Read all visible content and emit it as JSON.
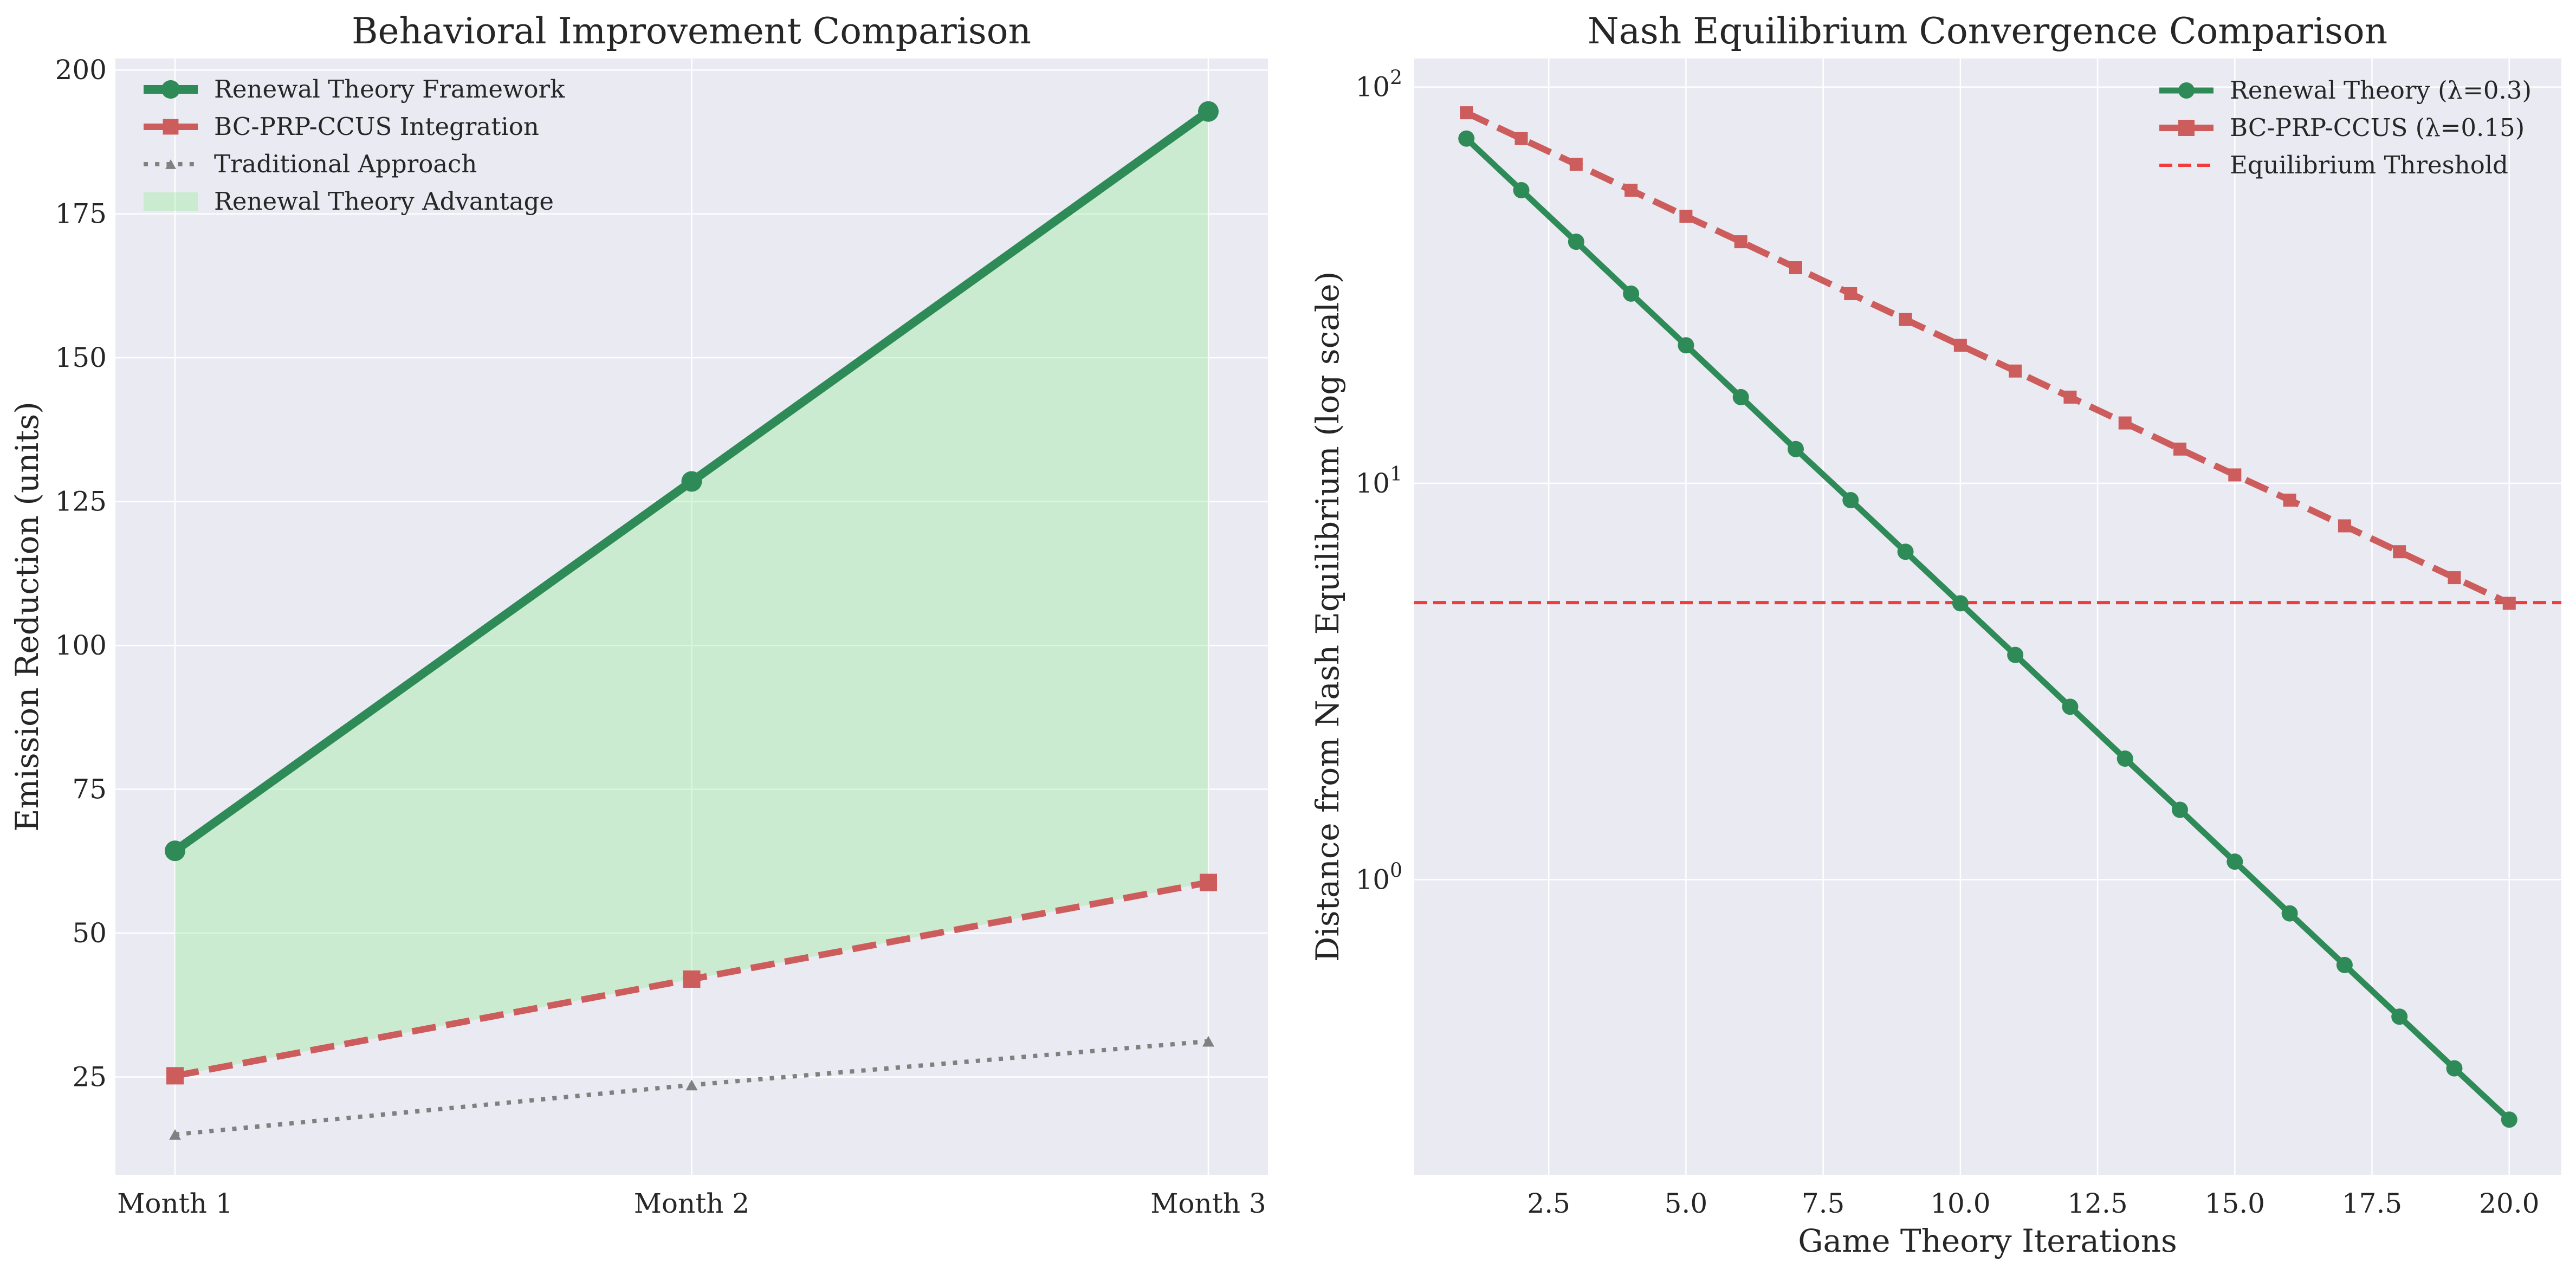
{
  "chart_data": [
    {
      "type": "line",
      "title": "Behavioral Improvement Comparison",
      "xlabel": "",
      "ylabel": "Emission Reduction (units)",
      "categories": [
        "Month 1",
        "Month 2",
        "Month 3"
      ],
      "ylim": [
        8,
        202
      ],
      "yticks": [
        25,
        50,
        75,
        100,
        125,
        150,
        175,
        200
      ],
      "grid": true,
      "legend_position": "upper-left",
      "series": [
        {
          "name": "Renewal Theory Framework",
          "values": [
            64.3,
            128.5,
            192.8
          ],
          "color": "#2e8b57",
          "marker": "circle",
          "line": "solid"
        },
        {
          "name": "BC-PRP-CCUS Integration",
          "values": [
            25.2,
            42.0,
            58.8
          ],
          "color": "#cd5c5c",
          "marker": "square",
          "line": "dashed"
        },
        {
          "name": "Traditional Approach",
          "values": [
            15.0,
            23.6,
            31.2
          ],
          "color": "#808080",
          "marker": "triangle",
          "line": "dotted"
        }
      ],
      "fill_between": {
        "name": "Renewal Theory Advantage",
        "upper": "Renewal Theory Framework",
        "lower": "BC-PRP-CCUS Integration",
        "color": "#90ee90"
      }
    },
    {
      "type": "line",
      "title": "Nash Equilibrium Convergence Comparison",
      "xlabel": "Game Theory Iterations",
      "ylabel": "Distance from Nash Equilibrium (log scale)",
      "xlim": [
        0.05,
        20.95
      ],
      "xticks": [
        2.5,
        5.0,
        7.5,
        10.0,
        12.5,
        15.0,
        17.5,
        20.0
      ],
      "ylim": [
        0.18,
        118
      ],
      "yscale": "log",
      "grid": true,
      "legend_position": "upper-right",
      "x": [
        1,
        2,
        3,
        4,
        5,
        6,
        7,
        8,
        9,
        10,
        11,
        12,
        13,
        14,
        15,
        16,
        17,
        18,
        19,
        20
      ],
      "series": [
        {
          "name": "Renewal Theory (λ=0.3)",
          "values": [
            74.1,
            54.9,
            40.7,
            30.1,
            22.3,
            16.5,
            12.2,
            9.07,
            6.72,
            4.98,
            3.69,
            2.73,
            2.02,
            1.5,
            1.11,
            0.822,
            0.609,
            0.451,
            0.334,
            0.248
          ],
          "color": "#2e8b57",
          "marker": "circle",
          "line": "solid"
        },
        {
          "name": "BC-PRP-CCUS (λ=0.15)",
          "values": [
            86.1,
            74.1,
            63.8,
            54.9,
            47.2,
            40.7,
            35.0,
            30.1,
            25.9,
            22.3,
            19.2,
            16.5,
            14.2,
            12.2,
            10.5,
            9.07,
            7.81,
            6.72,
            5.78,
            4.98
          ],
          "color": "#cd5c5c",
          "marker": "square",
          "line": "dashed"
        }
      ],
      "hline": {
        "name": "Equilibrium Threshold",
        "y": 5.0,
        "color": "#f03c3c",
        "line": "dashed"
      }
    }
  ]
}
